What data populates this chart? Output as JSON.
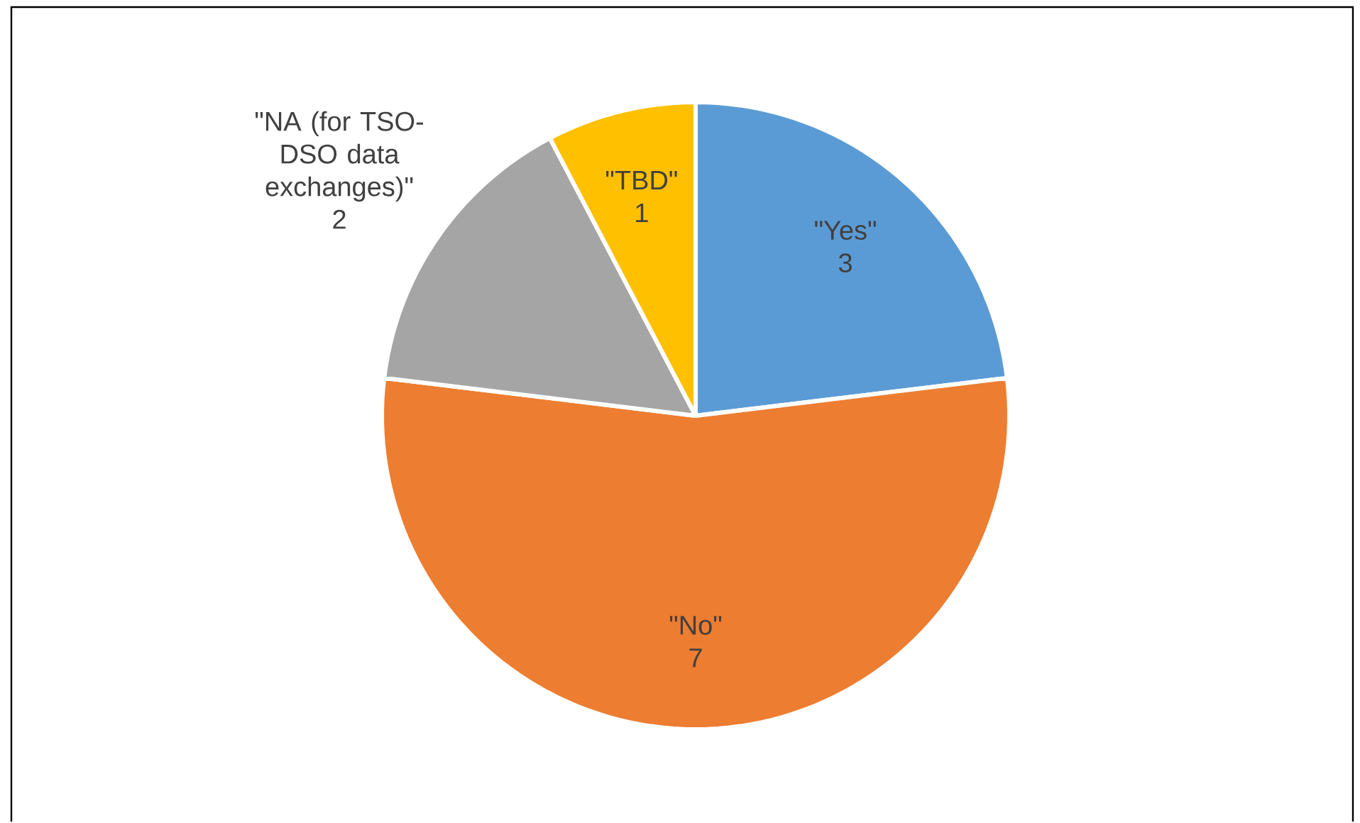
{
  "chart_data": {
    "type": "pie",
    "categories": [
      "\"Yes\"",
      "\"No\"",
      "\"NA (for TSO-DSO data exchanges)\"",
      "\"TBD\""
    ],
    "values": [
      3,
      7,
      2,
      1
    ],
    "colors": [
      "#5b9bd5",
      "#ed7d31",
      "#a5a5a5",
      "#ffc000"
    ],
    "data_labels": true
  }
}
